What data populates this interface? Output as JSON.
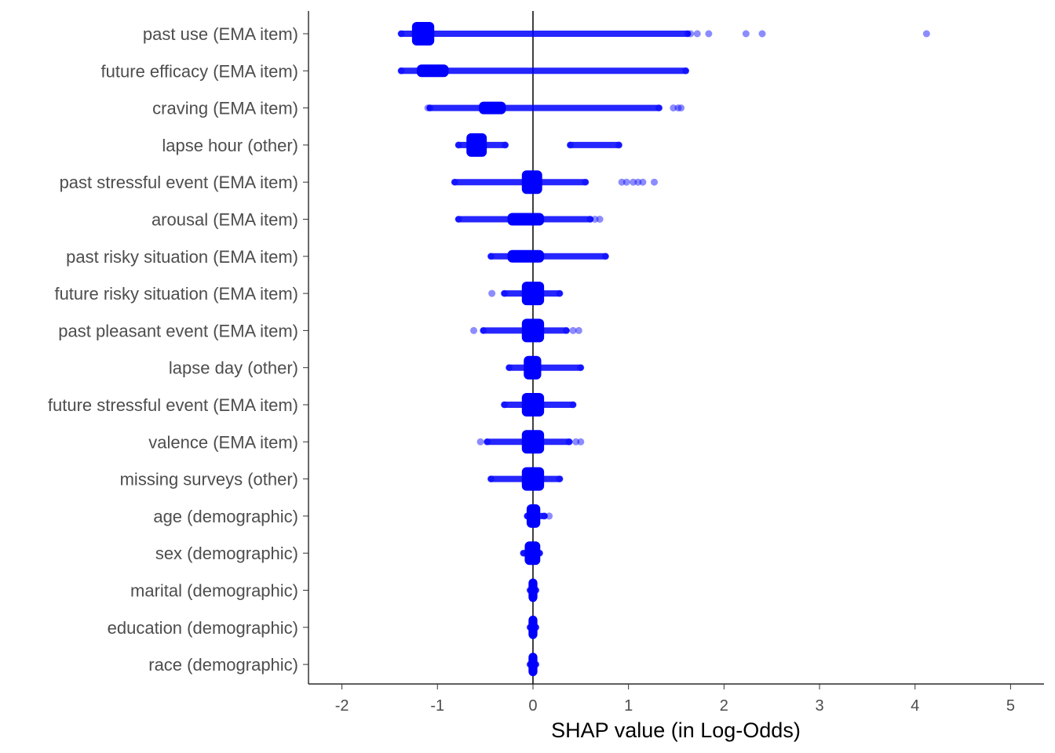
{
  "chart_data": {
    "type": "scatter",
    "title": "",
    "xlabel": "SHAP value (in Log-Odds)",
    "ylabel": "",
    "xlim": [
      -2.35,
      5.35
    ],
    "xticks": [
      -2,
      -1,
      0,
      1,
      2,
      3,
      4,
      5
    ],
    "xtick_labels": [
      "-2",
      "-1",
      "0",
      "1",
      "2",
      "3",
      "4",
      "5"
    ],
    "reference_line_x": 0,
    "grid": false,
    "legend": "none",
    "point_color": "#0000FF",
    "point_opacity": 0.45,
    "features": [
      {
        "label": "past use (EMA item)",
        "min": -1.38,
        "max": 1.62,
        "dense": [
          -1.25,
          -1.05
        ],
        "outliers": [
          1.65,
          1.72,
          1.84,
          2.23,
          2.4,
          4.12
        ]
      },
      {
        "label": "future efficacy (EMA item)",
        "min": -1.38,
        "max": 1.6,
        "dense": [
          -1.2,
          -0.9
        ],
        "outliers": []
      },
      {
        "label": "craving (EMA item)",
        "min": -1.08,
        "max": 1.32,
        "dense": [
          -0.55,
          -0.3
        ],
        "outliers": [
          -1.1,
          1.47,
          1.52,
          1.55
        ]
      },
      {
        "label": "lapse hour (other)",
        "min": -0.78,
        "max": 0.9,
        "dense": [
          -0.68,
          -0.5
        ],
        "gap": [
          -0.29,
          0.39
        ],
        "outliers": []
      },
      {
        "label": "past stressful event (EMA item)",
        "min": -0.82,
        "max": 0.55,
        "dense": [
          -0.1,
          0.08
        ],
        "outliers": [
          0.93,
          0.98,
          1.05,
          1.1,
          1.15,
          1.27
        ]
      },
      {
        "label": "arousal (EMA item)",
        "min": -0.78,
        "max": 0.6,
        "dense": [
          -0.25,
          0.1
        ],
        "outliers": [
          0.65,
          0.7
        ]
      },
      {
        "label": "past risky situation (EMA item)",
        "min": -0.44,
        "max": 0.76,
        "dense": [
          -0.25,
          0.1
        ],
        "outliers": []
      },
      {
        "label": "future risky situation (EMA item)",
        "min": -0.3,
        "max": 0.28,
        "dense": [
          -0.1,
          0.1
        ],
        "outliers": [
          -0.43
        ]
      },
      {
        "label": "past pleasant event (EMA item)",
        "min": -0.52,
        "max": 0.35,
        "dense": [
          -0.1,
          0.1
        ],
        "outliers": [
          -0.62,
          0.42,
          0.48
        ]
      },
      {
        "label": "lapse day (other)",
        "min": -0.25,
        "max": 0.5,
        "dense": [
          -0.08,
          0.07
        ],
        "outliers": []
      },
      {
        "label": "future stressful event (EMA item)",
        "min": -0.3,
        "max": 0.42,
        "dense": [
          -0.1,
          0.1
        ],
        "outliers": []
      },
      {
        "label": "valence (EMA item)",
        "min": -0.48,
        "max": 0.38,
        "dense": [
          -0.1,
          0.1
        ],
        "outliers": [
          -0.55,
          0.45,
          0.5
        ]
      },
      {
        "label": "missing surveys (other)",
        "min": -0.44,
        "max": 0.28,
        "dense": [
          -0.1,
          0.1
        ],
        "outliers": []
      },
      {
        "label": "age (demographic)",
        "min": -0.06,
        "max": 0.12,
        "dense": [
          -0.05,
          0.06
        ],
        "outliers": [
          0.17
        ]
      },
      {
        "label": "sex (demographic)",
        "min": -0.1,
        "max": 0.07,
        "dense": [
          -0.07,
          0.06
        ],
        "outliers": []
      },
      {
        "label": "marital (demographic)",
        "min": -0.03,
        "max": 0.03,
        "dense": [
          -0.03,
          0.03
        ],
        "outliers": []
      },
      {
        "label": "education (demographic)",
        "min": -0.03,
        "max": 0.03,
        "dense": [
          -0.03,
          0.03
        ],
        "outliers": []
      },
      {
        "label": "race (demographic)",
        "min": -0.03,
        "max": 0.03,
        "dense": [
          -0.03,
          0.03
        ],
        "outliers": []
      }
    ]
  }
}
